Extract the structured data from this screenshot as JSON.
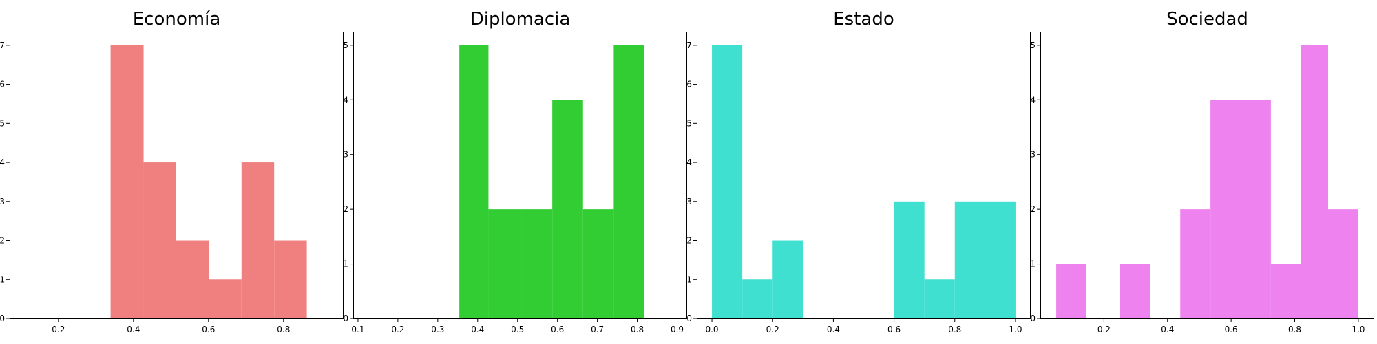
{
  "chart_data": [
    {
      "type": "bar",
      "title": "Economía",
      "color": "#f08080",
      "xlim": [
        0.07,
        0.96
      ],
      "ylim": [
        0,
        7.35
      ],
      "x_ticks": [
        0.2,
        0.4,
        0.6,
        0.8
      ],
      "x_tick_labels": [
        "0.2",
        "0.4",
        "0.6",
        "0.8"
      ],
      "y_ticks": [
        0,
        1,
        2,
        3,
        4,
        5,
        6,
        7
      ],
      "bin_edges": [
        0.0,
        0.086,
        0.172,
        0.258,
        0.339,
        0.427,
        0.514,
        0.601,
        0.688,
        0.775,
        0.862
      ],
      "counts": [
        0,
        0,
        0,
        0,
        7,
        4,
        2,
        1,
        4,
        2
      ]
    },
    {
      "type": "bar",
      "title": "Diplomacia",
      "color": "#32cd32",
      "xlim": [
        0.088,
        0.925
      ],
      "ylim": [
        0,
        5.25
      ],
      "x_ticks": [
        0.1,
        0.2,
        0.3,
        0.4,
        0.5,
        0.6,
        0.7,
        0.8,
        0.9
      ],
      "x_tick_labels": [
        "0.1",
        "0.2",
        "0.3",
        "0.4",
        "0.5",
        "0.6",
        "0.7",
        "0.8",
        "0.9"
      ],
      "y_ticks": [
        0,
        1,
        2,
        3,
        4,
        5
      ],
      "bin_edges": [
        0.354,
        0.427,
        0.51,
        0.587,
        0.664,
        0.741,
        0.818
      ],
      "counts": [
        5,
        2,
        2,
        4,
        2,
        5
      ]
    },
    {
      "type": "bar",
      "title": "Estado",
      "color": "#40e0d0",
      "xlim": [
        -0.05,
        1.05
      ],
      "ylim": [
        0,
        7.35
      ],
      "x_ticks": [
        0.0,
        0.2,
        0.4,
        0.6,
        0.8,
        1.0
      ],
      "x_tick_labels": [
        "0.0",
        "0.2",
        "0.4",
        "0.6",
        "0.8",
        "1.0"
      ],
      "y_ticks": [
        0,
        1,
        2,
        3,
        4,
        5,
        6,
        7
      ],
      "bin_edges": [
        0.0,
        0.1,
        0.2,
        0.3,
        0.4,
        0.5,
        0.6,
        0.7,
        0.8,
        0.9,
        1.0
      ],
      "counts": [
        7,
        1,
        2,
        0,
        0,
        0,
        3,
        1,
        3,
        3
      ]
    },
    {
      "type": "bar",
      "title": "Sociedad",
      "color": "#ee82ee",
      "xlim": [
        0.0,
        1.05
      ],
      "ylim": [
        0,
        5.25
      ],
      "x_ticks": [
        0.2,
        0.4,
        0.6,
        0.8,
        1.0
      ],
      "x_tick_labels": [
        "0.2",
        "0.4",
        "0.6",
        "0.8",
        "1.0"
      ],
      "y_ticks": [
        0,
        1,
        2,
        3,
        4,
        5
      ],
      "bin_edges": [
        0.05,
        0.145,
        0.25,
        0.345,
        0.44,
        0.535,
        0.63,
        0.725,
        0.82,
        0.905,
        1.0
      ],
      "counts": [
        1,
        0,
        1,
        0,
        2,
        4,
        4,
        1,
        5,
        2
      ]
    }
  ]
}
